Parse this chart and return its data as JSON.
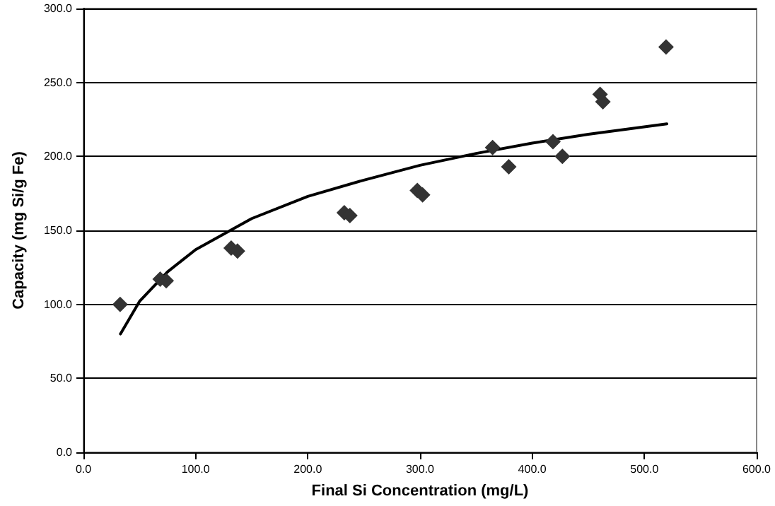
{
  "chart_data": {
    "type": "scatter",
    "xlabel": "Final Si Concentration (mg/L)",
    "ylabel": "Capacity (mg Si/g Fe)",
    "xlim": [
      0,
      600
    ],
    "xticks": [
      {
        "value": 0,
        "label": "0.0"
      },
      {
        "value": 100,
        "label": "100.0"
      },
      {
        "value": 200,
        "label": "200.0"
      },
      {
        "value": 300,
        "label": "300.0"
      },
      {
        "value": 400,
        "label": "400.0"
      },
      {
        "value": 500,
        "label": "500.0"
      },
      {
        "value": 600,
        "label": "600.0"
      }
    ],
    "ylim": [
      0,
      300
    ],
    "yticks": [
      {
        "value": 0,
        "label": "0.0"
      },
      {
        "value": 50,
        "label": "50.0"
      },
      {
        "value": 100,
        "label": "100.0"
      },
      {
        "value": 150,
        "label": "150.0"
      },
      {
        "value": 200,
        "label": "200.0"
      },
      {
        "value": 250,
        "label": "250.0"
      },
      {
        "value": 300,
        "label": "300.0"
      }
    ],
    "grid": "y",
    "marker": "diamond",
    "series": [
      {
        "type": "scatter",
        "color": "#333333",
        "x": [
          32.7,
          68.4,
          73.8,
          131.7,
          137.3,
          232.5,
          237.5,
          297.6,
          302.3,
          364.7,
          379.1,
          418.5,
          426.9,
          460.5,
          463,
          519.3
        ],
        "values": [
          100,
          117,
          116,
          138,
          136,
          162,
          160,
          177,
          174,
          206,
          193,
          210,
          200,
          242,
          237,
          274
        ]
      },
      {
        "type": "line",
        "color": "#000000",
        "marker": "none",
        "line_style": "solid",
        "x": [
          33,
          50,
          75,
          100,
          150,
          200,
          250,
          300,
          350,
          400,
          450,
          520
        ],
        "values": [
          80,
          102,
          122,
          137,
          158,
          173,
          184,
          194,
          202,
          209,
          215,
          222
        ]
      }
    ]
  }
}
